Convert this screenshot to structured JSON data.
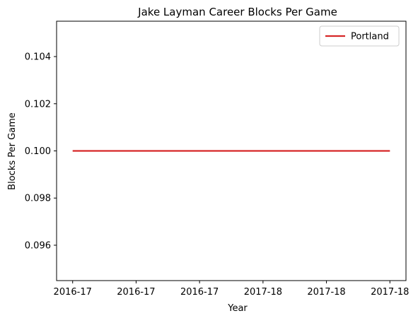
{
  "chart_data": {
    "type": "line",
    "title": "Jake Layman Career Blocks Per Game",
    "xlabel": "Year",
    "ylabel": "Blocks Per Game",
    "x_tick_labels": [
      "2016-17",
      "2016-17",
      "2016-17",
      "2017-18",
      "2017-18",
      "2017-18"
    ],
    "y_ticks": [
      0.096,
      0.098,
      0.1,
      0.102,
      0.104
    ],
    "y_tick_labels": [
      "0.096",
      "0.098",
      "0.100",
      "0.102",
      "0.104"
    ],
    "ylim": [
      0.0945,
      0.1055
    ],
    "series": [
      {
        "name": "Portland",
        "color": "#d62728",
        "x": [
          "2016-17",
          "2017-18"
        ],
        "values": [
          0.1,
          0.1
        ]
      }
    ],
    "legend": {
      "position": "top-right"
    },
    "grid": false
  }
}
